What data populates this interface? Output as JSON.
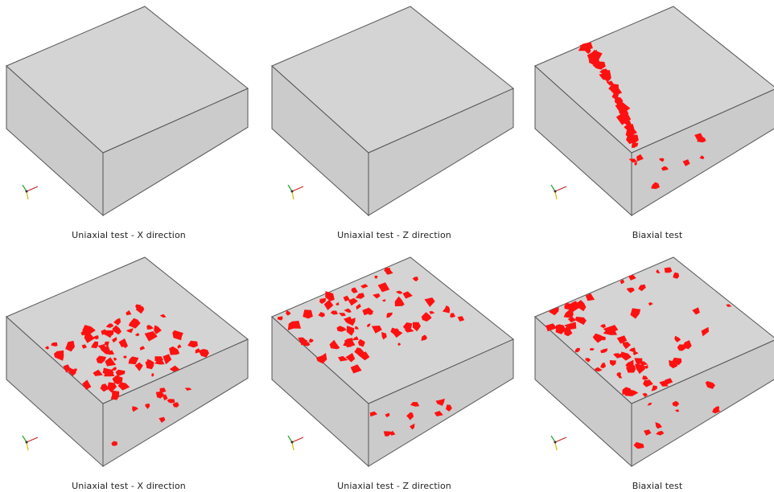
{
  "panels": [
    {
      "caption": "Uniaxial test - X direction",
      "pattern": "band-x"
    },
    {
      "caption": "Uniaxial test - Z direction",
      "pattern": "band-z"
    },
    {
      "caption": "Biaxial test",
      "pattern": "band-bi"
    },
    {
      "caption": "Uniaxial test - X direction",
      "pattern": "scatter-x"
    },
    {
      "caption": "Uniaxial test - Z direction",
      "pattern": "scatter-z"
    },
    {
      "caption": "Biaxial test",
      "pattern": "scatter-bi"
    }
  ],
  "colors": {
    "top_face": "#d4d4d4",
    "side_face": "#cbcbcb",
    "edge": "#555555",
    "crack": "#ff1010",
    "axis_x": "#cc2222",
    "axis_y": "#22aa22",
    "axis_z": "#d6b400"
  },
  "axis_icon": "xyz-orientation-triad-icon"
}
